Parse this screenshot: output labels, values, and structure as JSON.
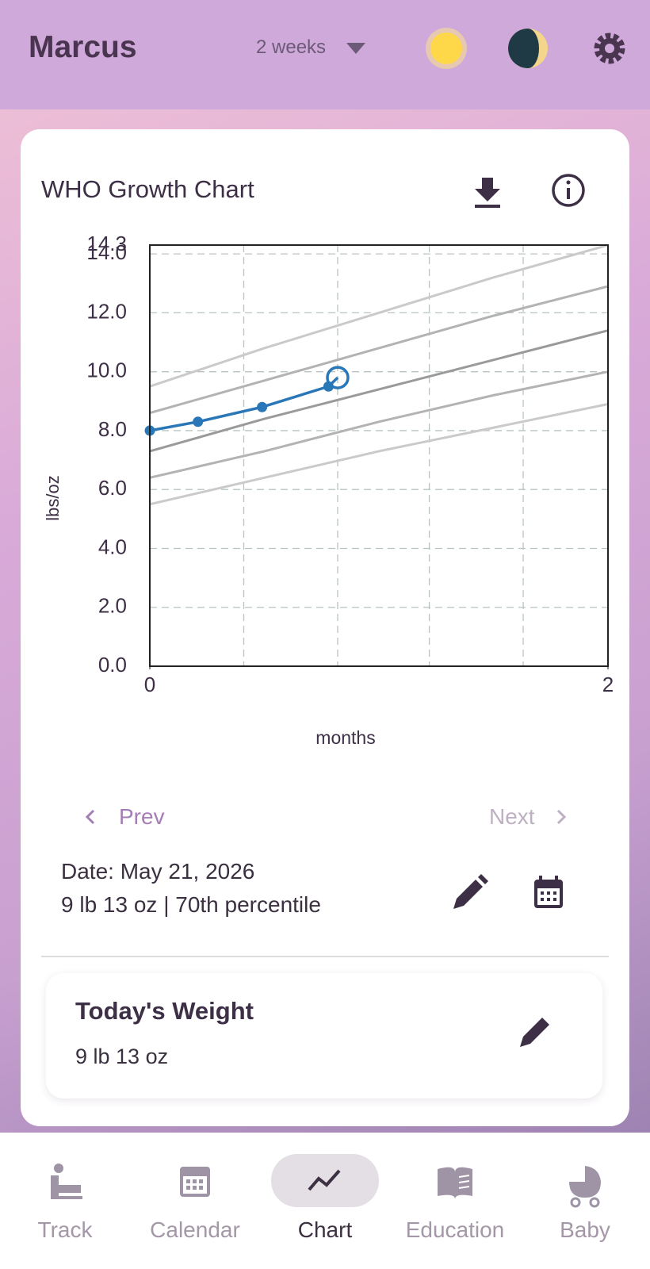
{
  "header": {
    "name": "Marcus",
    "range": "2 weeks"
  },
  "card": {
    "title": "WHO Growth Chart"
  },
  "chart_data": {
    "type": "line",
    "xlabel": "months",
    "ylabel": "lbs/oz",
    "xlim": [
      0,
      2
    ],
    "xticks": [
      0,
      2
    ],
    "xgrid": [
      0.41,
      0.82,
      1.22,
      1.63
    ],
    "ylim": [
      0,
      14.3
    ],
    "yticks": [
      {
        "value": 0,
        "label": "0.0"
      },
      {
        "value": 2,
        "label": "2.0"
      },
      {
        "value": 4,
        "label": "4.0"
      },
      {
        "value": 6,
        "label": "6.0"
      },
      {
        "value": 8,
        "label": "8.0"
      },
      {
        "value": 10,
        "label": "10.0"
      },
      {
        "value": 12,
        "label": "12.0"
      },
      {
        "value": 14,
        "label": "14.0"
      },
      14.3
    ],
    "grid": true,
    "series": [
      {
        "color": "#2a77b8",
        "x": [
          0,
          0.21,
          0.49,
          0.78,
          0.82
        ],
        "values": [
          8.0,
          8.3,
          8.8,
          9.5,
          9.8
        ],
        "markers": true,
        "highlight_last": true
      },
      {
        "color": "#cacaca",
        "x": [
          0,
          0.5,
          1,
          1.5,
          2
        ],
        "values": [
          9.5,
          10.8,
          12.0,
          13.2,
          14.3
        ]
      },
      {
        "color": "#b3b3b3",
        "x": [
          0,
          0.5,
          1,
          1.5,
          2
        ],
        "values": [
          8.6,
          9.7,
          10.8,
          11.9,
          12.9
        ]
      },
      {
        "color": "#9a9a9a",
        "x": [
          0,
          0.5,
          1,
          1.5,
          2
        ],
        "values": [
          7.3,
          8.4,
          9.4,
          10.4,
          11.4
        ]
      },
      {
        "color": "#b3b3b3",
        "x": [
          0,
          0.5,
          1,
          1.5,
          2
        ],
        "values": [
          6.4,
          7.3,
          8.3,
          9.2,
          10.0
        ]
      },
      {
        "color": "#cacaca",
        "x": [
          0,
          0.5,
          1,
          1.5,
          2
        ],
        "values": [
          5.5,
          6.4,
          7.3,
          8.1,
          8.9
        ]
      }
    ]
  },
  "navigation": {
    "prev": "Prev",
    "next": "Next"
  },
  "selected": {
    "date": "Date: May 21, 2026",
    "summary": "9 lb 13 oz | 70th percentile"
  },
  "today": {
    "title": "Today's Weight",
    "value": "9 lb 13 oz"
  },
  "tabs": {
    "active": 2,
    "items": [
      {
        "label": "Track"
      },
      {
        "label": "Calendar"
      },
      {
        "label": "Chart"
      },
      {
        "label": "Education"
      },
      {
        "label": "Baby"
      }
    ]
  }
}
